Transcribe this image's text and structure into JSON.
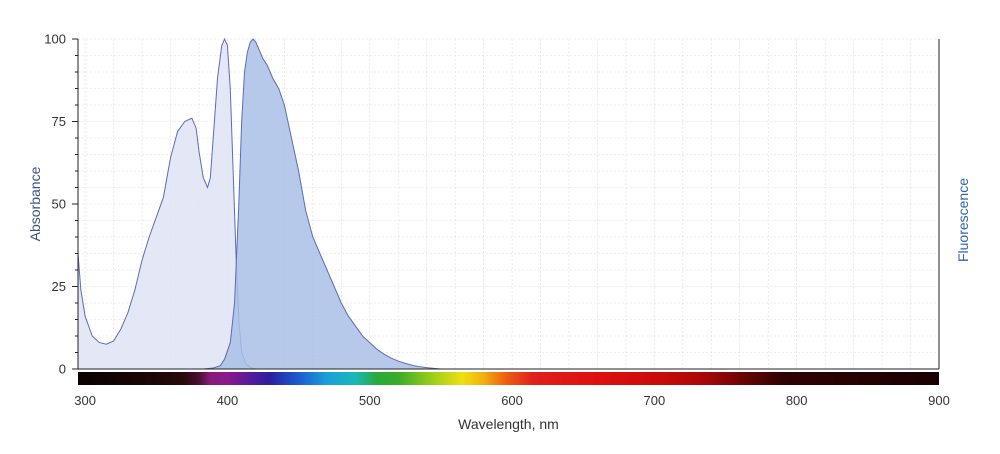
{
  "chart_data": {
    "type": "area",
    "title": "",
    "xlabel": "Wavelength, nm",
    "ylabel": "Absorbance",
    "y2label": "Fluorescence",
    "xlim": [
      295,
      900
    ],
    "ylim": [
      0,
      100
    ],
    "x_ticks": [
      300,
      400,
      500,
      600,
      700,
      800,
      900
    ],
    "y_ticks": [
      0,
      25,
      50,
      75,
      100
    ],
    "grid": true,
    "spectrum_bar": true,
    "colors": {
      "absorbance_fill": "#dfe3f4",
      "emission_fill": "#a9bfe6",
      "line": "#5b6db0",
      "axis": "#222222",
      "grid": "#dcdcdc"
    },
    "series": [
      {
        "x": [
          295,
          297,
          300,
          305,
          310,
          315,
          320,
          325,
          330,
          335,
          340,
          345,
          350,
          355,
          360,
          365,
          370,
          375,
          378,
          380,
          383,
          386,
          388,
          390,
          393,
          396,
          398,
          400,
          402,
          404,
          406,
          408,
          410,
          413,
          416,
          418,
          420
        ],
        "values": [
          35,
          24,
          16,
          10,
          8,
          7.5,
          8.5,
          12,
          17,
          24,
          33,
          40,
          46,
          52,
          64,
          72,
          75,
          76,
          73,
          66,
          58,
          55,
          58,
          70,
          88,
          98,
          100,
          98,
          85,
          60,
          35,
          15,
          5,
          1.5,
          0.5,
          0.2,
          0
        ]
      },
      {
        "x": [
          383,
          390,
          395,
          398,
          402,
          405,
          408,
          410,
          412,
          414,
          416,
          418,
          420,
          422,
          425,
          428,
          432,
          436,
          440,
          445,
          450,
          455,
          460,
          465,
          470,
          475,
          480,
          485,
          490,
          495,
          500,
          505,
          510,
          515,
          520,
          525,
          530,
          535,
          540,
          545,
          550
        ],
        "values": [
          0,
          0.3,
          1,
          3,
          8,
          20,
          50,
          75,
          90,
          96,
          99,
          100,
          99,
          97,
          94,
          92,
          88,
          85,
          80,
          70,
          60,
          48,
          40,
          35,
          30,
          25,
          20,
          16,
          13,
          10,
          8,
          6,
          4.5,
          3.3,
          2.4,
          1.7,
          1.1,
          0.7,
          0.4,
          0.2,
          0
        ]
      }
    ]
  }
}
